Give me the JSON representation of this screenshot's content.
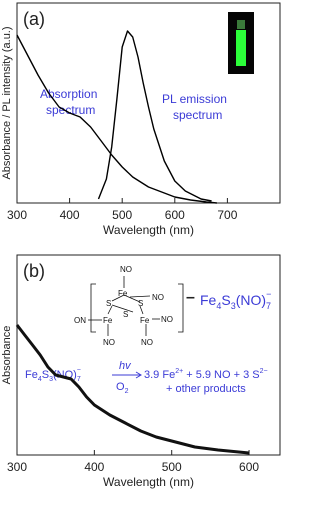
{
  "chart_data": [
    {
      "type": "line",
      "panel_label": "(a)",
      "x_label": "Wavelength (nm)",
      "y_label": "Absorbance / PL intensity (a.u.)",
      "xlim": [
        300,
        800
      ],
      "xticks": [
        300,
        400,
        500,
        600,
        700
      ],
      "ylim": [
        0,
        1
      ],
      "series": [
        {
          "color": "#000000",
          "x": [
            300,
            320,
            340,
            360,
            380,
            400,
            420,
            440,
            460,
            480,
            500,
            520,
            550,
            580,
            600,
            630,
            660,
            680
          ],
          "values": [
            0.84,
            0.74,
            0.64,
            0.55,
            0.48,
            0.45,
            0.43,
            0.38,
            0.31,
            0.24,
            0.18,
            0.13,
            0.08,
            0.05,
            0.03,
            0.015,
            0.005,
            0.0
          ]
        },
        {
          "color": "#000000",
          "x": [
            455,
            470,
            480,
            490,
            500,
            510,
            520,
            530,
            540,
            550,
            560,
            580,
            600,
            620,
            650,
            670
          ],
          "values": [
            0.02,
            0.12,
            0.28,
            0.52,
            0.78,
            0.86,
            0.83,
            0.73,
            0.6,
            0.48,
            0.37,
            0.21,
            0.11,
            0.06,
            0.02,
            0.01
          ]
        }
      ],
      "annotations": [
        "Absorption",
        "spectrum",
        "PL emission",
        "spectrum"
      ]
    },
    {
      "type": "line",
      "panel_label": "(b)",
      "x_label": "Wavelength (nm)",
      "y_label": "Absorbance",
      "xlim": [
        300,
        640
      ],
      "xticks": [
        300,
        400,
        500,
        600
      ],
      "ylim": [
        0,
        1
      ],
      "series": [
        {
          "color": "#111111",
          "x": [
            300,
            310,
            320,
            330,
            340,
            350,
            360,
            370,
            380,
            390,
            400,
            420,
            440,
            460,
            480,
            500,
            530,
            560,
            600
          ],
          "values": [
            0.65,
            0.6,
            0.55,
            0.5,
            0.44,
            0.4,
            0.39,
            0.38,
            0.34,
            0.29,
            0.25,
            0.2,
            0.16,
            0.12,
            0.09,
            0.07,
            0.04,
            0.025,
            0.01
          ]
        }
      ],
      "structure_labels": [
        "NO",
        "Fe",
        "S",
        "S",
        "ON",
        "Fe",
        "S",
        "Fe",
        "NO",
        "NO",
        "NO",
        "NO",
        "–"
      ],
      "formula_label": [
        "Fe",
        "4",
        "S",
        "3",
        "(NO)",
        "7",
        "−"
      ],
      "reaction": {
        "reactant": [
          "Fe",
          "4",
          "S",
          "3",
          "(NO)",
          "7",
          "−"
        ],
        "above_arrow": "hv",
        "below_arrow": [
          "O",
          "2"
        ],
        "products": [
          "3.9 Fe",
          "2+",
          " + 5.9 NO + 3 S",
          "2−"
        ],
        "products_line2": "+ other products"
      }
    }
  ]
}
